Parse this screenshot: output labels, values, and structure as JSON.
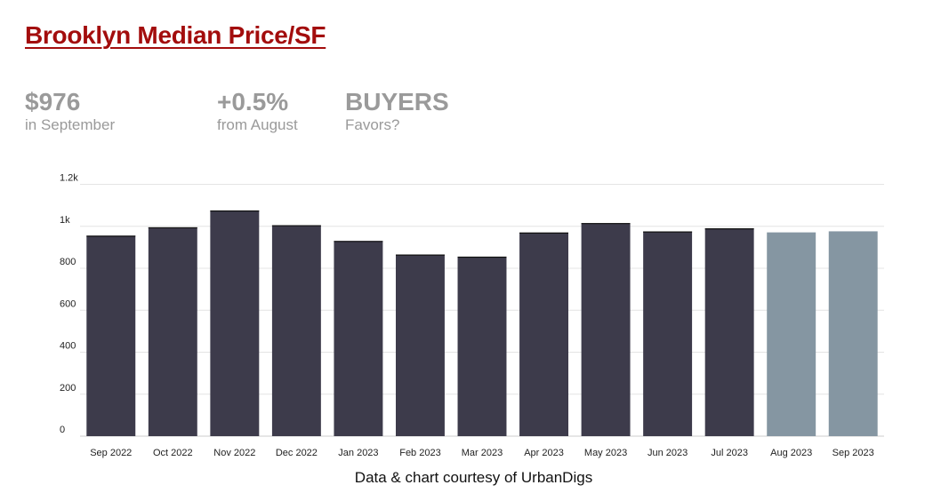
{
  "title": "Brooklyn Median Price/SF",
  "stats": [
    {
      "value": "$976",
      "label": "in September"
    },
    {
      "value": "+0.5%",
      "label": "from August"
    },
    {
      "value": "BUYERS",
      "label": "Favors?"
    }
  ],
  "caption": "Data & chart courtesy of UrbanDigs",
  "colors": {
    "title": "#a30d0d",
    "bar": "#3d3b4b",
    "bar_highlight": "#8596a2",
    "stat": "#9a9a9a"
  },
  "chart_data": {
    "type": "bar",
    "categories": [
      "Sep 2022",
      "Oct 2022",
      "Nov 2022",
      "Dec 2022",
      "Jan 2023",
      "Feb 2023",
      "Mar 2023",
      "Apr 2023",
      "May 2023",
      "Jun 2023",
      "Jul 2023",
      "Aug 2023",
      "Sep 2023"
    ],
    "values": [
      955,
      995,
      1075,
      1005,
      930,
      865,
      855,
      970,
      1015,
      975,
      990,
      971,
      976
    ],
    "highlighted": [
      "Aug 2023",
      "Sep 2023"
    ],
    "yticks": [
      0,
      200,
      400,
      600,
      800,
      1000,
      1200
    ],
    "ytick_labels": [
      "0",
      "200",
      "400",
      "600",
      "800",
      "1k",
      "1.2k"
    ],
    "ylim": [
      0,
      1200
    ],
    "grid": true,
    "xlabel": "",
    "ylabel": ""
  }
}
